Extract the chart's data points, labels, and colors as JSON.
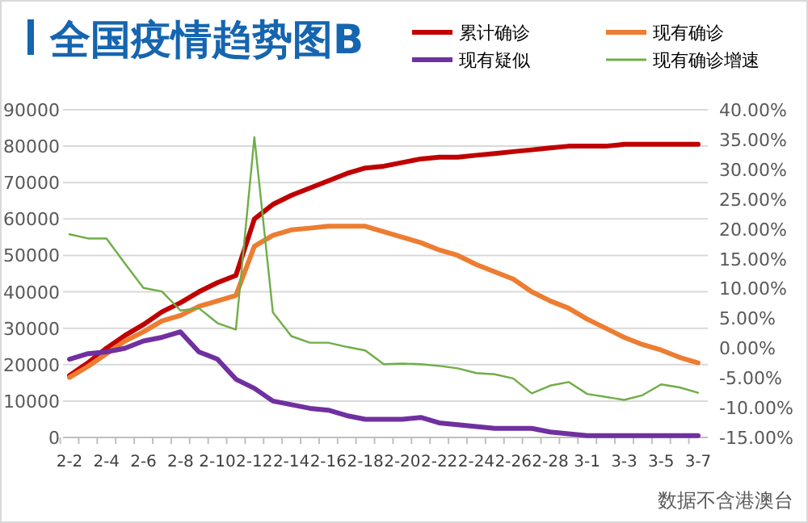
{
  "chart_data": {
    "type": "line",
    "title": "全国疫情趋势图B",
    "categories": [
      "2-2",
      null,
      "2-4",
      null,
      "2-6",
      null,
      "2-8",
      null,
      "2-10",
      null,
      "2-12",
      null,
      "2-14",
      null,
      "2-16",
      null,
      "2-18",
      null,
      "2-20",
      null,
      "2-22",
      null,
      "2-24",
      null,
      "2-26",
      null,
      "2-28",
      null,
      "3-1",
      null,
      "3-3",
      null,
      "3-5",
      null,
      "3-7"
    ],
    "series": [
      {
        "name": "累计确诊",
        "color": "#c00000",
        "values": [
          17000,
          20500,
          24500,
          28000,
          31000,
          34500,
          37000,
          40000,
          42500,
          44500,
          60000,
          64000,
          66500,
          68500,
          70500,
          72500,
          74000,
          74500,
          75500,
          76500,
          77000,
          77000,
          77500,
          78000,
          78500,
          79000,
          79500,
          80000,
          80000,
          80000,
          80500,
          80500,
          80500,
          80500,
          80500
        ]
      },
      {
        "name": "现有确诊",
        "color": "#ed7d31",
        "values": [
          16500,
          19500,
          23000,
          26500,
          29000,
          32000,
          33500,
          36000,
          37500,
          39000,
          52500,
          55500,
          57000,
          57500,
          58000,
          58000,
          58000,
          56500,
          55000,
          53500,
          51500,
          50000,
          47500,
          45500,
          43500,
          40000,
          37500,
          35500,
          32500,
          30000,
          27500,
          25500,
          24000,
          22000,
          20500
        ]
      },
      {
        "name": "现有疑似",
        "color": "#7030a0",
        "values": [
          21500,
          23000,
          23500,
          24500,
          26500,
          27500,
          29000,
          23500,
          21500,
          16000,
          13500,
          10000,
          9000,
          8000,
          7500,
          6000,
          5000,
          5000,
          5000,
          5500,
          4000,
          3500,
          3000,
          2500,
          2500,
          2500,
          1500,
          1000,
          500,
          500,
          500,
          500,
          500,
          500,
          500
        ]
      },
      {
        "name": "现有确诊增速",
        "color": "#70ad47",
        "axis": "y2",
        "values": [
          19.1,
          18.4,
          18.4,
          14.2,
          10.1,
          9.5,
          6.3,
          6.7,
          4.2,
          3.1,
          35.4,
          6.0,
          2.0,
          0.9,
          0.9,
          0.2,
          -0.4,
          -2.7,
          -2.6,
          -2.7,
          -3.0,
          -3.4,
          -4.2,
          -4.4,
          -5.1,
          -7.6,
          -6.3,
          -5.7,
          -7.7,
          -8.2,
          -8.7,
          -7.9,
          -6.1,
          -6.6,
          -7.5
        ]
      }
    ],
    "ylim": [
      0,
      90000
    ],
    "yticks": [
      0,
      10000,
      20000,
      30000,
      40000,
      50000,
      60000,
      70000,
      80000,
      90000
    ],
    "y2lim": [
      -15,
      40
    ],
    "y2ticks": [
      {
        "value": -15,
        "label": "-15.00%"
      },
      {
        "value": -10,
        "label": "-10.00%"
      },
      {
        "value": -5,
        "label": "-5.00%"
      },
      {
        "value": 0,
        "label": "0.00%"
      },
      {
        "value": 5,
        "label": "5.00%"
      },
      {
        "value": 10,
        "label": "10.00%"
      },
      {
        "value": 15,
        "label": "15.00%"
      },
      {
        "value": 20,
        "label": "20.00%"
      },
      {
        "value": 25,
        "label": "25.00%"
      },
      {
        "value": 30,
        "label": "30.00%"
      },
      {
        "value": 35,
        "label": "35.00%"
      },
      {
        "value": 40,
        "label": "40.00%"
      }
    ],
    "grid": "y",
    "legend": "top",
    "marker": "none",
    "line_style": "solid",
    "annotations": [
      "数据不含港澳台"
    ]
  }
}
